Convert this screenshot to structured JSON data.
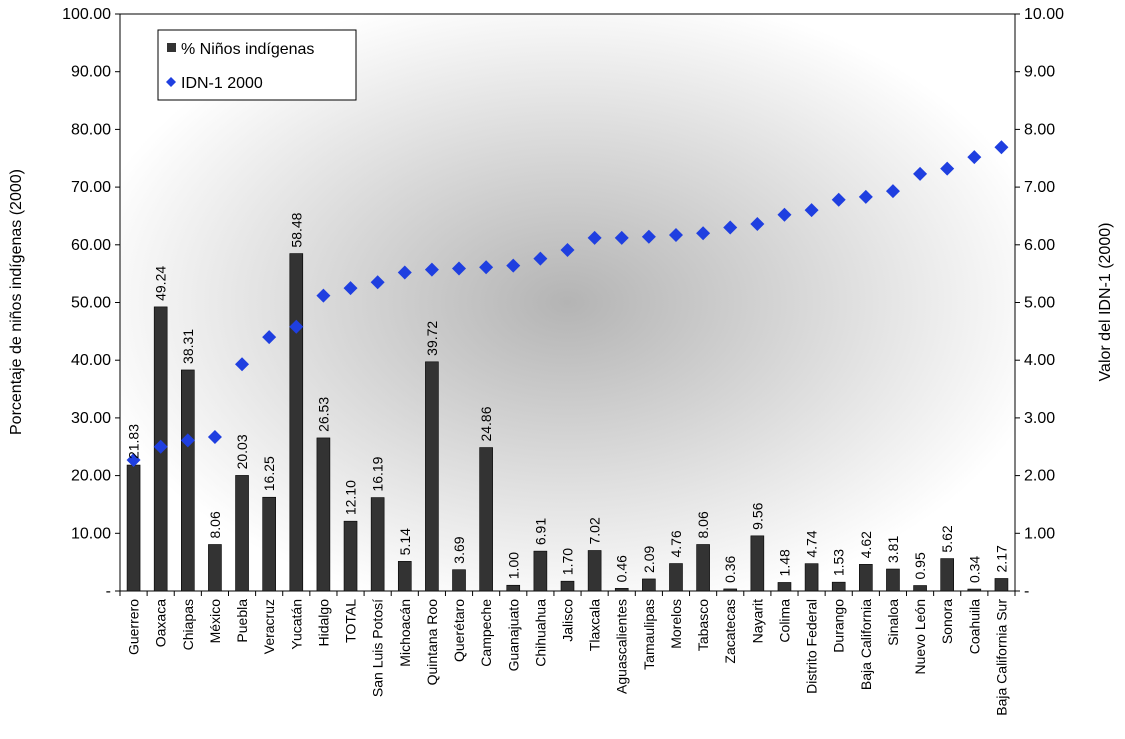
{
  "chart_data": {
    "type": "bar",
    "categories": [
      "Guerrero",
      "Oaxaca",
      "Chiapas",
      "México",
      "Puebla",
      "Veracruz",
      "Yucatán",
      "Hidalgo",
      "TOTAL",
      "San Luis Potosí",
      "Michoacán",
      "Quintana Roo",
      "Querétaro",
      "Campeche",
      "Guanajuato",
      "Chihuahua",
      "Jalisco",
      "Tlaxcala",
      "Aguascalientes",
      "Tamaulipas",
      "Morelos",
      "Tabasco",
      "Zacatecas",
      "Nayarit",
      "Colima",
      "Distrito Federal",
      "Durango",
      "Baja California",
      "Sinaloa",
      "Nuevo León",
      "Sonora",
      "Coahuila",
      "Baja California Sur"
    ],
    "series": [
      {
        "name": "% Niños indígenas",
        "type": "bar",
        "axis": "left",
        "color": "#333333",
        "values": [
          21.83,
          49.24,
          38.31,
          8.06,
          20.03,
          16.25,
          58.48,
          26.53,
          12.1,
          16.19,
          5.14,
          39.72,
          3.69,
          24.86,
          1.0,
          6.91,
          1.7,
          7.02,
          0.46,
          2.09,
          4.76,
          8.06,
          0.36,
          9.56,
          1.48,
          4.74,
          1.53,
          4.62,
          3.81,
          0.95,
          5.62,
          0.34,
          2.17
        ],
        "data_labels": [
          "21.83",
          "49.24",
          "38.31",
          "8.06",
          "20.03",
          "16.25",
          "58.48",
          "26.53",
          "12.10",
          "16.19",
          "5.14",
          "39.72",
          "3.69",
          "24.86",
          "1.00",
          "6.91",
          "1.70",
          "7.02",
          "0.46",
          "2.09",
          "4.76",
          "8.06",
          "0.36",
          "9.56",
          "1.48",
          "4.74",
          "1.53",
          "4.62",
          "3.81",
          "0.95",
          "5.62",
          "0.34",
          "2.17"
        ]
      },
      {
        "name": "IDN-1 2000",
        "type": "scatter",
        "axis": "right",
        "color": "#1f3fe0",
        "marker": "diamond",
        "values": [
          2.27,
          2.5,
          2.61,
          2.67,
          3.93,
          4.4,
          4.58,
          5.12,
          5.25,
          5.35,
          5.52,
          5.57,
          5.59,
          5.61,
          5.64,
          5.76,
          5.91,
          6.12,
          6.12,
          6.14,
          6.17,
          6.2,
          6.3,
          6.36,
          6.52,
          6.6,
          6.78,
          6.83,
          6.93,
          7.23,
          7.32,
          7.52,
          7.69
        ]
      }
    ],
    "ylabel": "Porcentaje de niños indígenas (2000)",
    "y2label": "Valor del IDN-1 (2000)",
    "ylim": [
      0,
      100
    ],
    "y2lim": [
      0,
      10
    ],
    "yticks": [
      "-",
      "10.00",
      "20.00",
      "30.00",
      "40.00",
      "50.00",
      "60.00",
      "70.00",
      "80.00",
      "90.00",
      "100.00"
    ],
    "y2ticks": [
      "-",
      "1.00",
      "2.00",
      "3.00",
      "4.00",
      "5.00",
      "6.00",
      "7.00",
      "8.00",
      "9.00",
      "10.00"
    ],
    "legend_position": "top-left",
    "grid": false,
    "background": "radial gray gradient"
  }
}
